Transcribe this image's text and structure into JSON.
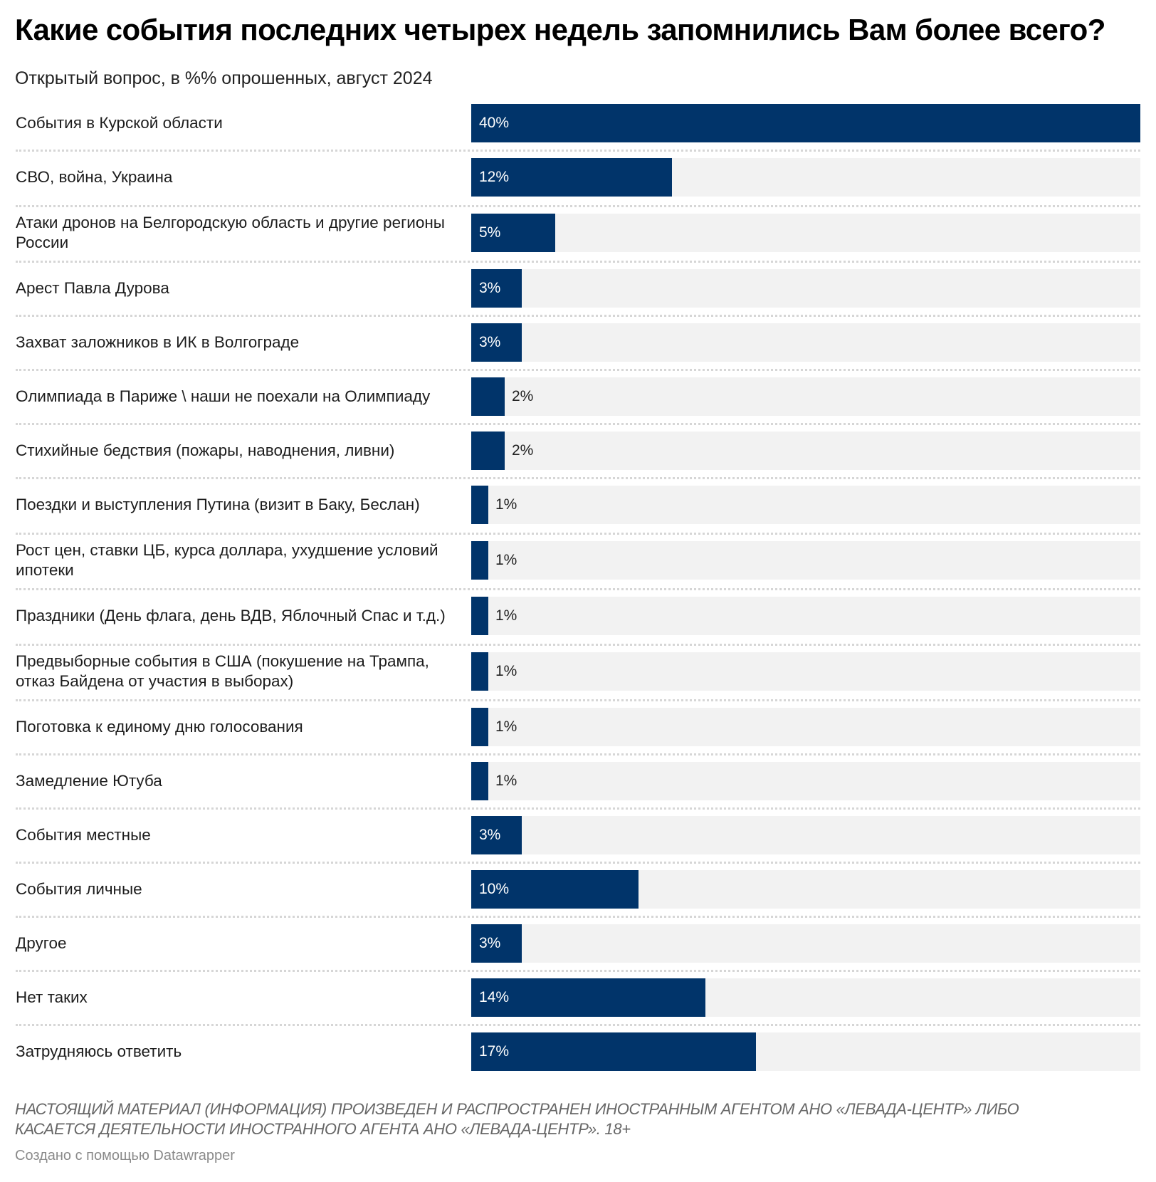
{
  "header": {
    "title": "Какие события последних четырех недель запомнились Вам более всего?",
    "subtitle": "Открытый вопрос, в %% опрошенных, август 2024"
  },
  "colors": {
    "bar": "#01346a",
    "track": "#f2f2f2",
    "separator": "#d6d6d6"
  },
  "chart_data": {
    "type": "bar",
    "orientation": "horizontal",
    "title": "Какие события последних четырех недель запомнились Вам более всего?",
    "subtitle": "Открытый вопрос, в %% опрошенных, август 2024",
    "xlabel": "",
    "ylabel": "",
    "xlim": [
      0,
      40
    ],
    "unit": "%",
    "grid": false,
    "legend": "none",
    "categories": [
      "События в Курской области",
      "СВО, война, Украина",
      "Атаки дронов на Белгородскую область и другие регионы России",
      "Арест Павла Дурова",
      "Захват заложников в ИК в Волгограде",
      "Олимпиада в Париже \\ наши не поехали на Олимпиаду",
      "Стихийные бедствия (пожары, наводнения, ливни)",
      "Поездки и выступления Путина (визит в Баку, Беслан)",
      "Рост цен, ставки ЦБ, курса доллара, ухудшение условий ипотеки",
      "Праздники (День флага, день ВДВ, Яблочный Спас и т.д.)",
      "Предвыборные события в США (покушение на Трампа, отказ Байдена от участия в выборах)",
      "Поготовка к единому дню голосования",
      "Замедление Ютуба",
      "События местные",
      "События личные",
      "Другое",
      "Нет таких",
      "Затрудняюсь ответить"
    ],
    "values": [
      40,
      12,
      5,
      3,
      3,
      2,
      2,
      1,
      1,
      1,
      1,
      1,
      1,
      3,
      10,
      3,
      14,
      17
    ],
    "value_labels": [
      "40%",
      "12%",
      "5%",
      "3%",
      "3%",
      "2%",
      "2%",
      "1%",
      "1%",
      "1%",
      "1%",
      "1%",
      "1%",
      "3%",
      "10%",
      "3%",
      "14%",
      "17%"
    ]
  },
  "footer": {
    "notes": "НАСТОЯЩИЙ МАТЕРИАЛ (ИНФОРМАЦИЯ) ПРОИЗВЕДЕН И РАСПРОСТРАНЕН ИНОСТРАННЫМ АГЕНТОМ АНО «ЛЕВАДА-ЦЕНТР» ЛИБО КАСАЕТСЯ ДЕЯТЕЛЬНОСТИ ИНОСТРАННОГО АГЕНТА АНО «ЛЕВАДА-ЦЕНТР». 18+",
    "credit": "Создано с помощью Datawrapper"
  }
}
